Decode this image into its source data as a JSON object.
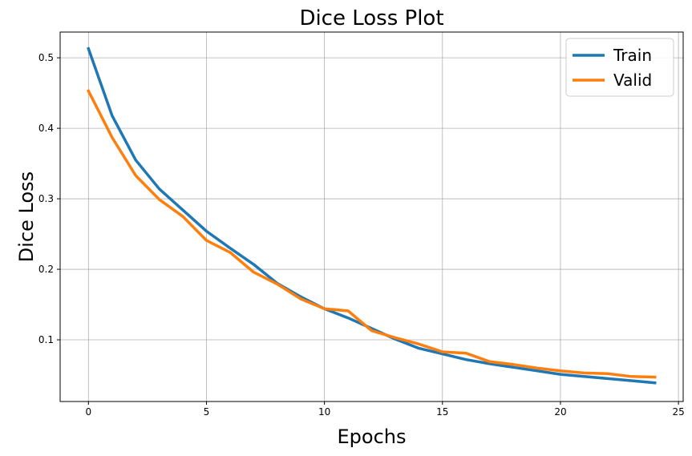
{
  "chart_data": {
    "type": "line",
    "title": "Dice Loss Plot",
    "xlabel": "Epochs",
    "ylabel": "Dice Loss",
    "xlim": [
      -1.2,
      25.2
    ],
    "ylim": [
      0.0125,
      0.5365
    ],
    "xticks": [
      0,
      5,
      10,
      15,
      20,
      25
    ],
    "yticks": [
      0.1,
      0.2,
      0.3,
      0.4,
      0.5
    ],
    "grid": true,
    "legend_position": "top-right",
    "x": [
      0,
      1,
      2,
      3,
      4,
      5,
      6,
      7,
      8,
      9,
      10,
      11,
      12,
      13,
      14,
      15,
      16,
      17,
      18,
      19,
      20,
      21,
      22,
      23,
      24
    ],
    "series": [
      {
        "name": "Train",
        "color": "#1f77b4",
        "values": [
          0.513,
          0.418,
          0.355,
          0.314,
          0.284,
          0.254,
          0.23,
          0.207,
          0.18,
          0.161,
          0.144,
          0.131,
          0.116,
          0.101,
          0.088,
          0.08,
          0.072,
          0.066,
          0.061,
          0.056,
          0.051,
          0.048,
          0.045,
          0.042,
          0.039
        ]
      },
      {
        "name": "Valid",
        "color": "#ff7f0e",
        "values": [
          0.453,
          0.387,
          0.333,
          0.299,
          0.275,
          0.241,
          0.224,
          0.196,
          0.179,
          0.158,
          0.144,
          0.141,
          0.113,
          0.103,
          0.094,
          0.083,
          0.081,
          0.069,
          0.065,
          0.06,
          0.056,
          0.053,
          0.052,
          0.048,
          0.047
        ]
      }
    ]
  }
}
